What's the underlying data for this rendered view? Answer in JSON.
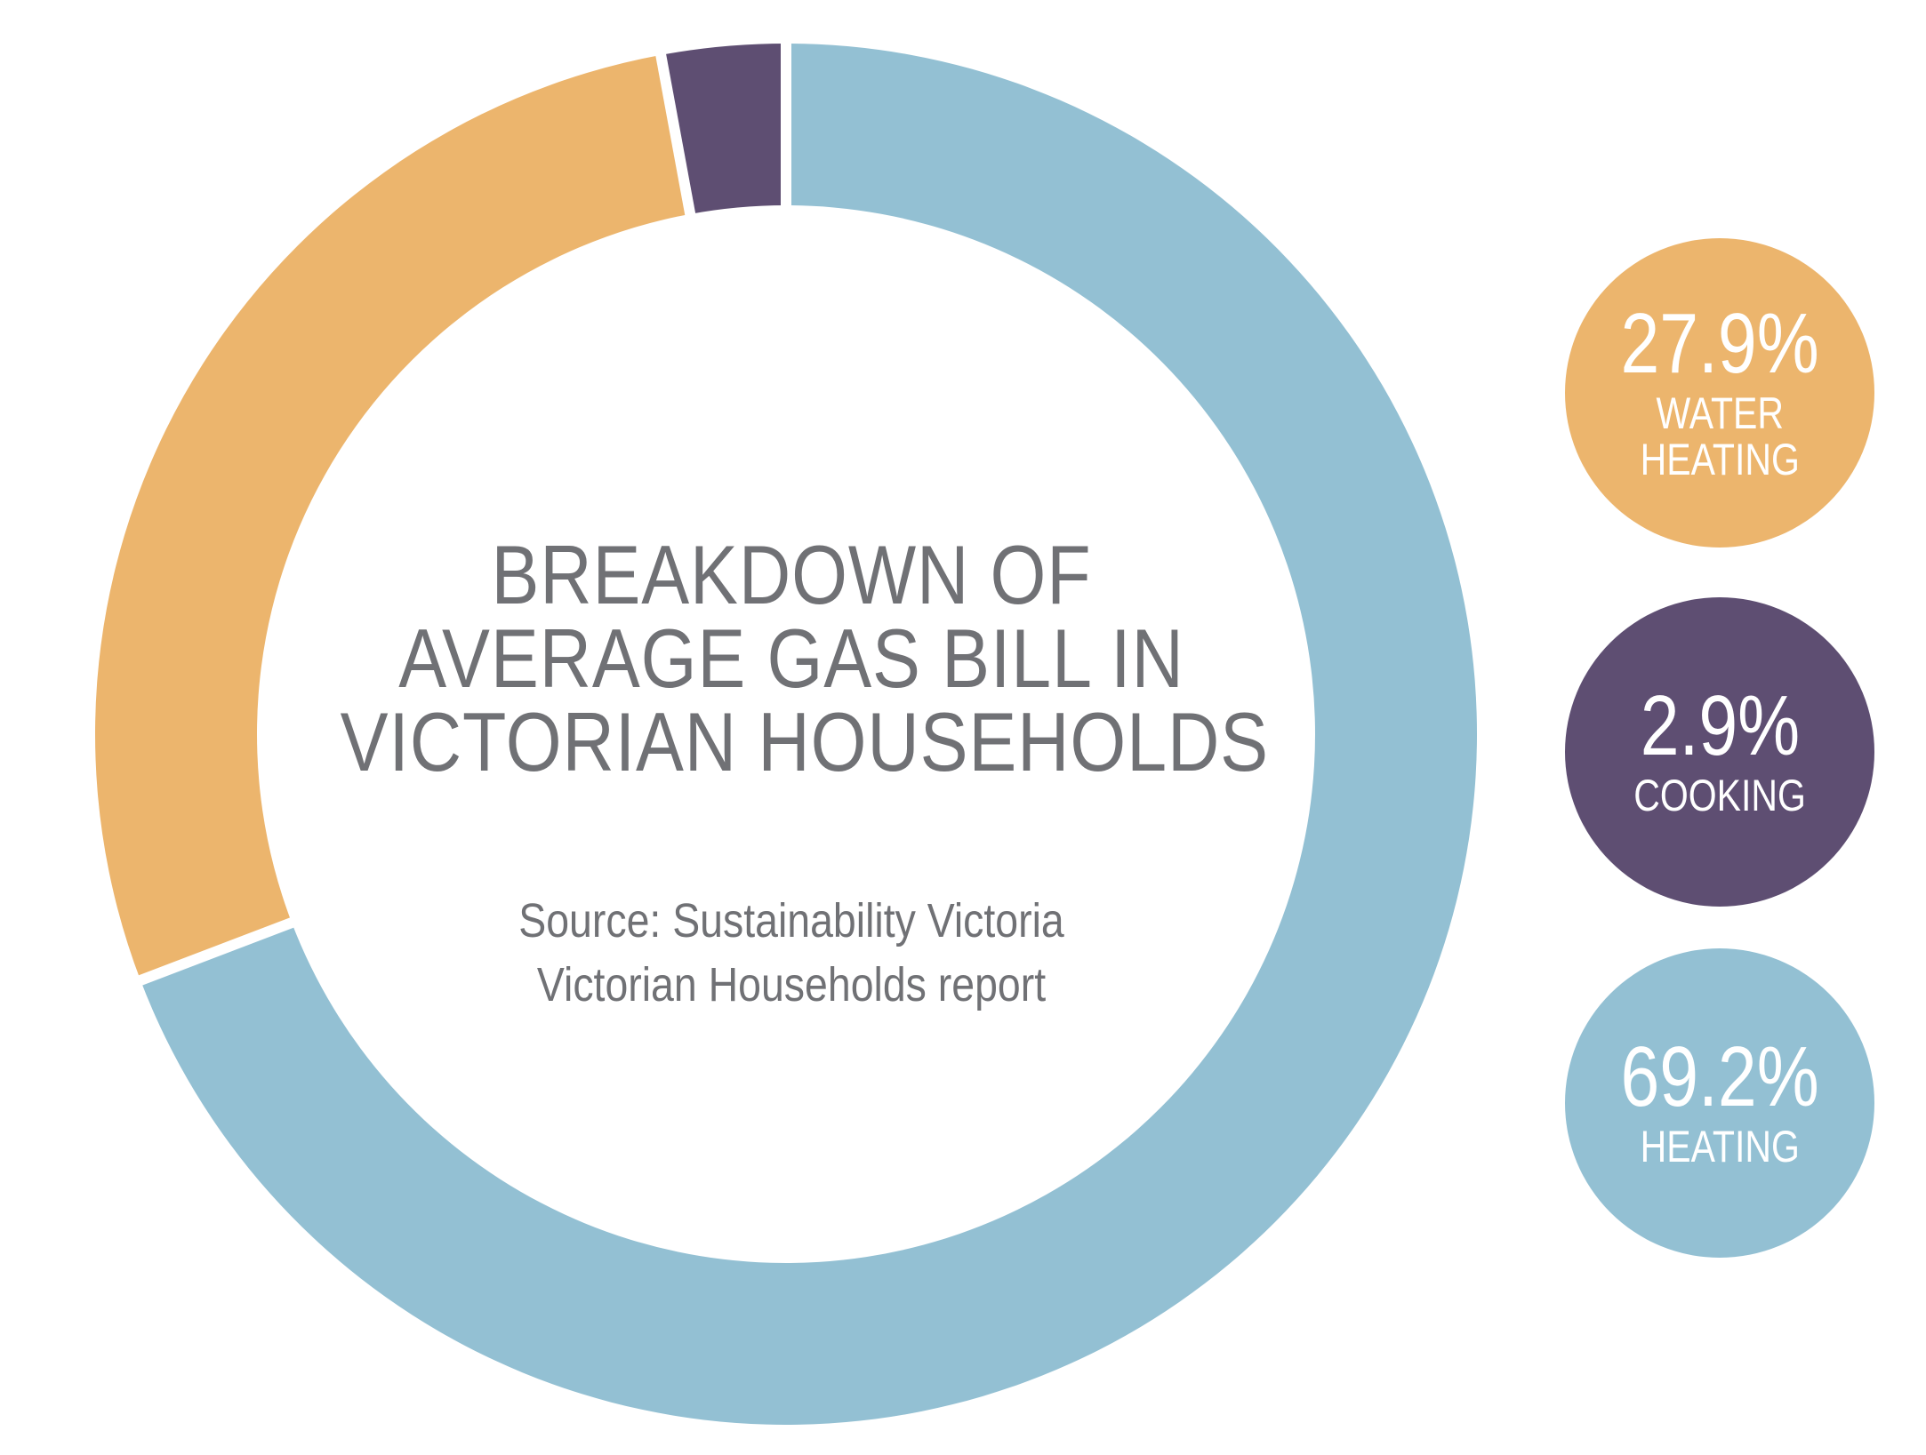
{
  "chart_data": {
    "type": "pie",
    "variant": "donut",
    "title_lines": [
      "BREAKDOWN OF",
      "AVERAGE GAS BILL IN",
      "VICTORIAN HOUSEHOLDS"
    ],
    "source_lines": [
      "Source: Sustainability Victoria",
      "Victorian Households report"
    ],
    "series": [
      {
        "name": "HEATING",
        "value": 69.2,
        "label": "69.2%",
        "color": "#93c0d3"
      },
      {
        "name": "WATER HEATING",
        "value": 27.9,
        "label": "27.9%",
        "color": "#ecb56d"
      },
      {
        "name": "COOKING",
        "value": 2.9,
        "label": "2.9%",
        "color": "#5e4e72"
      }
    ],
    "legend_position": "right"
  },
  "legend": [
    {
      "pct": "27.9%",
      "label": "WATER\nHEATING",
      "color": "#ecb56d"
    },
    {
      "pct": "2.9%",
      "label": "COOKING",
      "color": "#5e4e72"
    },
    {
      "pct": "69.2%",
      "label": "HEATING",
      "color": "#93c0d3"
    }
  ],
  "colors": {
    "text_gray": "#707175",
    "background": "#ffffff"
  }
}
